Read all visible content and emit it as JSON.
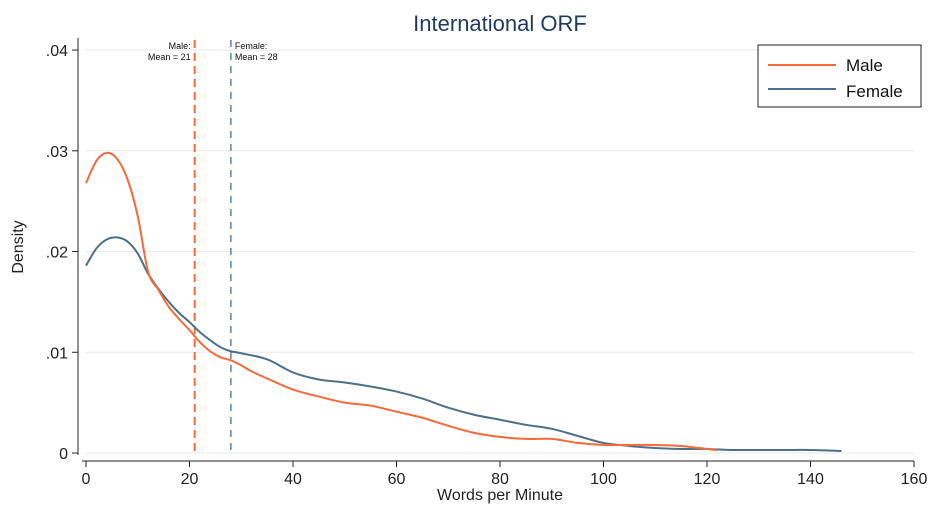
{
  "chart_data": {
    "type": "line",
    "title": "International ORF",
    "xlabel": "Words per Minute",
    "ylabel": "Density",
    "xlim": [
      0,
      160
    ],
    "ylim": [
      0,
      0.041
    ],
    "xticks": [
      0,
      20,
      40,
      60,
      80,
      100,
      120,
      140,
      160
    ],
    "xtick_labels": [
      "0",
      "20",
      "40",
      "60",
      "80",
      "100",
      "120",
      "140",
      "160"
    ],
    "yticks": [
      0,
      0.01,
      0.02,
      0.03,
      0.04
    ],
    "ytick_labels": [
      "0",
      ".01",
      ".02",
      ".03",
      ".04"
    ],
    "grid": "horizontal",
    "legend_position": "top-right",
    "series": [
      {
        "name": "Male",
        "color": "#f26b3a",
        "x": [
          0,
          2,
          4,
          6,
          8,
          10,
          12,
          14,
          16,
          18,
          20,
          22,
          24,
          26,
          28,
          30,
          32,
          35,
          40,
          45,
          50,
          55,
          60,
          65,
          70,
          75,
          80,
          85,
          90,
          95,
          100,
          105,
          110,
          115,
          120,
          122
        ],
        "y": [
          0.0268,
          0.029,
          0.0298,
          0.0292,
          0.0272,
          0.0235,
          0.018,
          0.0162,
          0.0145,
          0.0133,
          0.0122,
          0.011,
          0.0101,
          0.0095,
          0.0092,
          0.0087,
          0.0081,
          0.0074,
          0.0063,
          0.0056,
          0.005,
          0.0047,
          0.0041,
          0.0035,
          0.0027,
          0.002,
          0.0016,
          0.0014,
          0.0014,
          0.001,
          0.0008,
          0.0008,
          0.0008,
          0.0007,
          0.0004,
          0.0003
        ]
      },
      {
        "name": "Female",
        "color": "#4f6f86",
        "x": [
          0,
          2,
          4,
          6,
          8,
          10,
          12,
          14,
          16,
          18,
          20,
          22,
          24,
          26,
          28,
          30,
          35,
          40,
          45,
          50,
          55,
          60,
          65,
          70,
          75,
          80,
          85,
          90,
          95,
          100,
          105,
          110,
          115,
          120,
          125,
          130,
          135,
          140,
          146
        ],
        "y": [
          0.0186,
          0.0203,
          0.0212,
          0.0214,
          0.021,
          0.0198,
          0.0178,
          0.0163,
          0.015,
          0.0139,
          0.013,
          0.012,
          0.0112,
          0.0105,
          0.0101,
          0.0099,
          0.0093,
          0.008,
          0.0073,
          0.007,
          0.0066,
          0.0061,
          0.0054,
          0.0045,
          0.0038,
          0.0033,
          0.0028,
          0.0024,
          0.0017,
          0.001,
          0.0007,
          0.0005,
          0.0004,
          0.0004,
          0.0003,
          0.0003,
          0.0003,
          0.0003,
          0.0002
        ]
      }
    ],
    "reference_lines": [
      {
        "series": "Male",
        "x": 21,
        "label_line1": "Male:",
        "label_line2": "Mean = 21",
        "color": "#f26b3a"
      },
      {
        "series": "Female",
        "x": 28,
        "label_line1": "Female:",
        "label_line2": "Mean = 28",
        "color": "#4f6f86"
      }
    ]
  }
}
